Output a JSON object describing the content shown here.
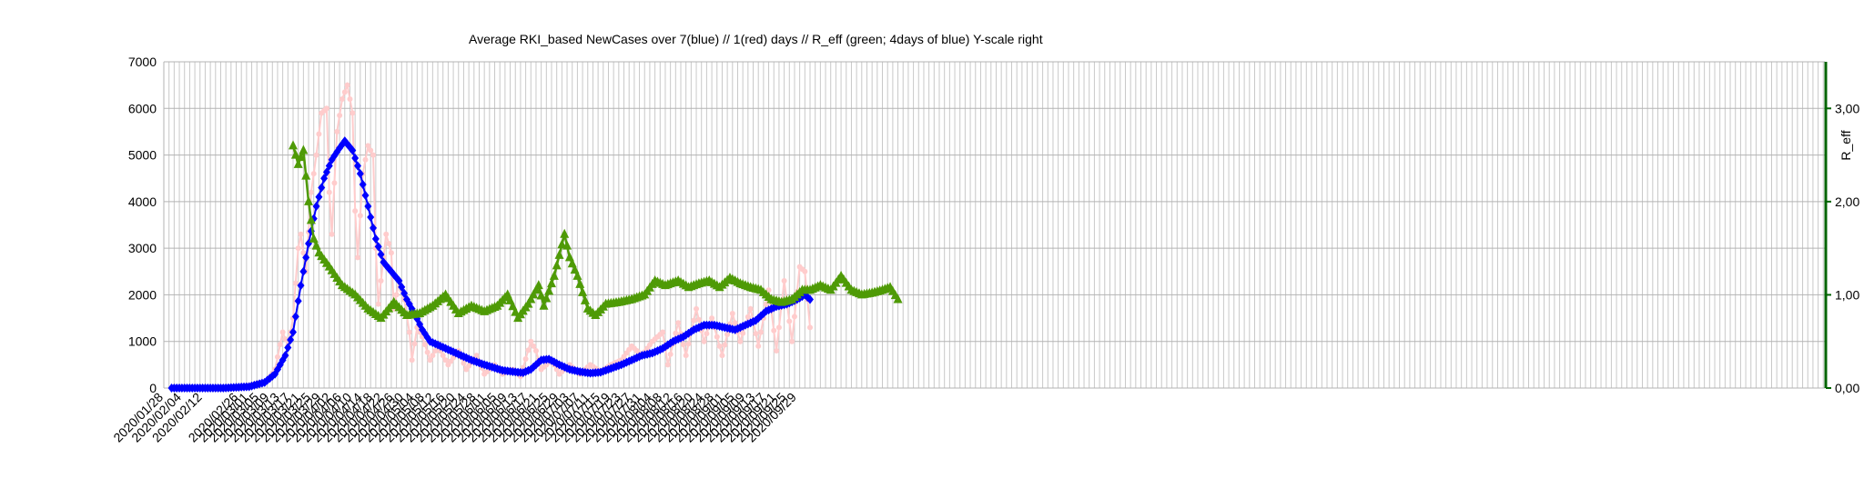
{
  "chart_data": {
    "type": "line",
    "title": "Average RKI_based NewCases over 7(blue) // 1(red) days //  R_eff (green; 4days of blue) Y-scale right",
    "xlabel": "",
    "ylabel": "",
    "y2label": "R_eff",
    "ylim": [
      0,
      7000
    ],
    "y2lim": [
      0,
      3.5
    ],
    "y_ticks": [
      "0",
      "1000",
      "2000",
      "3000",
      "4000",
      "5000",
      "6000",
      "7000"
    ],
    "y2_ticks": [
      "0,00",
      "1,00",
      "2,00",
      "3,00"
    ],
    "x_start": "2020/01/28",
    "x_tick_labels": [
      "2020/01/28",
      "2020/02/04",
      "2020/02/12",
      "2020/02/26",
      "2020/03/01",
      "2020/03/05",
      "2020/03/09",
      "2020/03/13",
      "2020/03/17",
      "2020/03/21",
      "2020/03/25",
      "2020/03/29",
      "2020/04/02",
      "2020/04/06",
      "2020/04/10",
      "2020/04/14",
      "2020/04/18",
      "2020/04/22",
      "2020/04/26",
      "2020/04/30",
      "2020/05/04",
      "2020/05/08",
      "2020/05/12",
      "2020/05/16",
      "2020/05/20",
      "2020/05/24",
      "2020/05/28",
      "2020/06/01",
      "2020/06/05",
      "2020/06/09",
      "2020/06/13",
      "2020/06/17",
      "2020/06/21",
      "2020/06/25",
      "2020/06/29",
      "2020/07/03",
      "2020/07/07",
      "2020/07/11",
      "2020/07/15",
      "2020/07/19",
      "2020/07/23",
      "2020/07/27",
      "2020/07/31",
      "2020/08/04",
      "2020/08/08",
      "2020/08/12",
      "2020/08/16",
      "2020/08/20",
      "2020/08/24",
      "2020/08/28",
      "2020/09/01",
      "2020/09/05",
      "2020/09/09",
      "2020/09/13",
      "2020/09/17",
      "2020/09/21",
      "2020/09/25",
      "2020/09/29"
    ],
    "grid": true,
    "series": [
      {
        "key": "avg7",
        "color": "#0000ff",
        "marker": "diamond",
        "axis": "left",
        "points": [
          [
            "2020/01/31",
            0
          ],
          [
            "2020/02/20",
            0
          ],
          [
            "2020/03/01",
            30
          ],
          [
            "2020/03/07",
            120
          ],
          [
            "2020/03/11",
            300
          ],
          [
            "2020/03/15",
            700
          ],
          [
            "2020/03/18",
            1200
          ],
          [
            "2020/03/21",
            2200
          ],
          [
            "2020/03/24",
            3100
          ],
          [
            "2020/03/27",
            3900
          ],
          [
            "2020/03/30",
            4500
          ],
          [
            "2020/04/02",
            4900
          ],
          [
            "2020/04/05",
            5150
          ],
          [
            "2020/04/07",
            5300
          ],
          [
            "2020/04/10",
            5100
          ],
          [
            "2020/04/13",
            4600
          ],
          [
            "2020/04/16",
            3900
          ],
          [
            "2020/04/19",
            3200
          ],
          [
            "2020/04/22",
            2700
          ],
          [
            "2020/04/25",
            2500
          ],
          [
            "2020/04/28",
            2300
          ],
          [
            "2020/05/01",
            1900
          ],
          [
            "2020/05/04",
            1600
          ],
          [
            "2020/05/07",
            1250
          ],
          [
            "2020/05/10",
            1000
          ],
          [
            "2020/05/14",
            900
          ],
          [
            "2020/05/18",
            800
          ],
          [
            "2020/05/22",
            700
          ],
          [
            "2020/05/26",
            600
          ],
          [
            "2020/05/30",
            520
          ],
          [
            "2020/06/03",
            450
          ],
          [
            "2020/06/07",
            380
          ],
          [
            "2020/06/11",
            350
          ],
          [
            "2020/06/15",
            330
          ],
          [
            "2020/06/18",
            400
          ],
          [
            "2020/06/22",
            600
          ],
          [
            "2020/06/25",
            620
          ],
          [
            "2020/06/29",
            500
          ],
          [
            "2020/07/03",
            400
          ],
          [
            "2020/07/07",
            350
          ],
          [
            "2020/07/11",
            320
          ],
          [
            "2020/07/15",
            340
          ],
          [
            "2020/07/19",
            420
          ],
          [
            "2020/07/23",
            500
          ],
          [
            "2020/07/27",
            600
          ],
          [
            "2020/07/31",
            700
          ],
          [
            "2020/08/04",
            750
          ],
          [
            "2020/08/08",
            850
          ],
          [
            "2020/08/12",
            1000
          ],
          [
            "2020/08/16",
            1100
          ],
          [
            "2020/08/20",
            1250
          ],
          [
            "2020/08/24",
            1350
          ],
          [
            "2020/08/28",
            1350
          ],
          [
            "2020/09/01",
            1300
          ],
          [
            "2020/09/05",
            1250
          ],
          [
            "2020/09/09",
            1350
          ],
          [
            "2020/09/13",
            1450
          ],
          [
            "2020/09/17",
            1650
          ],
          [
            "2020/09/21",
            1750
          ],
          [
            "2020/09/25",
            1800
          ],
          [
            "2020/09/29",
            1900
          ],
          [
            "2020/10/02",
            2000
          ],
          [
            "2020/10/04",
            1900
          ]
        ]
      },
      {
        "key": "daily",
        "color": "#ffcccc",
        "marker": "circle",
        "axis": "left",
        "points": [
          [
            "2020/01/31",
            0
          ],
          [
            "2020/02/26",
            0
          ],
          [
            "2020/03/04",
            100
          ],
          [
            "2020/03/08",
            150
          ],
          [
            "2020/03/11",
            400
          ],
          [
            "2020/03/14",
            1200
          ],
          [
            "2020/03/16",
            900
          ],
          [
            "2020/03/18",
            1500
          ],
          [
            "2020/03/20",
            3000
          ],
          [
            "2020/03/21",
            3300
          ],
          [
            "2020/03/23",
            2500
          ],
          [
            "2020/03/25",
            4200
          ],
          [
            "2020/03/27",
            5000
          ],
          [
            "2020/03/29",
            5900
          ],
          [
            "2020/03/31",
            6000
          ],
          [
            "2020/04/01",
            4200
          ],
          [
            "2020/04/02",
            3300
          ],
          [
            "2020/04/04",
            5500
          ],
          [
            "2020/04/06",
            6200
          ],
          [
            "2020/04/08",
            6500
          ],
          [
            "2020/04/10",
            5900
          ],
          [
            "2020/04/11",
            3800
          ],
          [
            "2020/04/12",
            2800
          ],
          [
            "2020/04/14",
            4600
          ],
          [
            "2020/04/16",
            5200
          ],
          [
            "2020/04/18",
            5000
          ],
          [
            "2020/04/19",
            3000
          ],
          [
            "2020/04/20",
            1800
          ],
          [
            "2020/04/23",
            3300
          ],
          [
            "2020/04/25",
            2900
          ],
          [
            "2020/04/26",
            1700
          ],
          [
            "2020/04/28",
            2300
          ],
          [
            "2020/04/30",
            1900
          ],
          [
            "2020/05/02",
            1200
          ],
          [
            "2020/05/03",
            600
          ],
          [
            "2020/05/05",
            1300
          ],
          [
            "2020/05/07",
            1100
          ],
          [
            "2020/05/10",
            600
          ],
          [
            "2020/05/13",
            900
          ],
          [
            "2020/05/17",
            500
          ],
          [
            "2020/05/21",
            800
          ],
          [
            "2020/05/24",
            400
          ],
          [
            "2020/05/28",
            700
          ],
          [
            "2020/05/31",
            300
          ],
          [
            "2020/06/04",
            500
          ],
          [
            "2020/06/07",
            300
          ],
          [
            "2020/06/11",
            400
          ],
          [
            "2020/06/14",
            250
          ],
          [
            "2020/06/18",
            1000
          ],
          [
            "2020/06/20",
            800
          ],
          [
            "2020/06/22",
            400
          ],
          [
            "2020/06/26",
            600
          ],
          [
            "2020/06/29",
            300
          ],
          [
            "2020/07/03",
            500
          ],
          [
            "2020/07/07",
            300
          ],
          [
            "2020/07/11",
            500
          ],
          [
            "2020/07/15",
            350
          ],
          [
            "2020/07/19",
            500
          ],
          [
            "2020/07/23",
            600
          ],
          [
            "2020/07/27",
            900
          ],
          [
            "2020/07/31",
            700
          ],
          [
            "2020/08/04",
            1000
          ],
          [
            "2020/08/08",
            1200
          ],
          [
            "2020/08/10",
            500
          ],
          [
            "2020/08/14",
            1400
          ],
          [
            "2020/08/17",
            700
          ],
          [
            "2020/08/21",
            1700
          ],
          [
            "2020/08/24",
            1000
          ],
          [
            "2020/08/27",
            1500
          ],
          [
            "2020/08/31",
            700
          ],
          [
            "2020/09/04",
            1600
          ],
          [
            "2020/09/07",
            1000
          ],
          [
            "2020/09/11",
            1700
          ],
          [
            "2020/09/14",
            900
          ],
          [
            "2020/09/18",
            2100
          ],
          [
            "2020/09/21",
            800
          ],
          [
            "2020/09/24",
            2300
          ],
          [
            "2020/09/27",
            1000
          ],
          [
            "2020/09/30",
            2600
          ],
          [
            "2020/10/02",
            2500
          ],
          [
            "2020/10/04",
            1300
          ]
        ]
      },
      {
        "key": "reff",
        "color": "#4e9a06",
        "marker": "triangle",
        "axis": "right",
        "points": [
          [
            "2020/03/18",
            2.6
          ],
          [
            "2020/03/20",
            2.4
          ],
          [
            "2020/03/22",
            2.55
          ],
          [
            "2020/03/24",
            2.0
          ],
          [
            "2020/03/26",
            1.6
          ],
          [
            "2020/03/28",
            1.45
          ],
          [
            "2020/04/01",
            1.3
          ],
          [
            "2020/04/06",
            1.1
          ],
          [
            "2020/04/11",
            1.0
          ],
          [
            "2020/04/16",
            0.85
          ],
          [
            "2020/04/21",
            0.75
          ],
          [
            "2020/04/26",
            0.92
          ],
          [
            "2020/05/01",
            0.78
          ],
          [
            "2020/05/06",
            0.8
          ],
          [
            "2020/05/11",
            0.88
          ],
          [
            "2020/05/16",
            1.0
          ],
          [
            "2020/05/21",
            0.8
          ],
          [
            "2020/05/26",
            0.88
          ],
          [
            "2020/05/31",
            0.82
          ],
          [
            "2020/06/05",
            0.88
          ],
          [
            "2020/06/09",
            1.0
          ],
          [
            "2020/06/13",
            0.75
          ],
          [
            "2020/06/17",
            0.9
          ],
          [
            "2020/06/21",
            1.1
          ],
          [
            "2020/06/23",
            0.88
          ],
          [
            "2020/06/27",
            1.2
          ],
          [
            "2020/07/01",
            1.65
          ],
          [
            "2020/07/03",
            1.4
          ],
          [
            "2020/07/06",
            1.2
          ],
          [
            "2020/07/10",
            0.85
          ],
          [
            "2020/07/13",
            0.78
          ],
          [
            "2020/07/17",
            0.9
          ],
          [
            "2020/07/22",
            0.92
          ],
          [
            "2020/07/27",
            0.95
          ],
          [
            "2020/08/01",
            1.0
          ],
          [
            "2020/08/05",
            1.15
          ],
          [
            "2020/08/09",
            1.1
          ],
          [
            "2020/08/14",
            1.15
          ],
          [
            "2020/08/18",
            1.08
          ],
          [
            "2020/08/22",
            1.12
          ],
          [
            "2020/08/26",
            1.15
          ],
          [
            "2020/08/30",
            1.08
          ],
          [
            "2020/09/03",
            1.18
          ],
          [
            "2020/09/07",
            1.12
          ],
          [
            "2020/09/11",
            1.08
          ],
          [
            "2020/09/15",
            1.05
          ],
          [
            "2020/09/19",
            0.95
          ],
          [
            "2020/09/23",
            0.92
          ],
          [
            "2020/09/27",
            0.95
          ],
          [
            "2020/10/01",
            1.05
          ],
          [
            "2020/10/04",
            1.05
          ],
          [
            "2020/10/08",
            1.1
          ],
          [
            "2020/10/12",
            1.05
          ],
          [
            "2020/10/16",
            1.2
          ],
          [
            "2020/10/20",
            1.05
          ],
          [
            "2020/10/24",
            1.0
          ],
          [
            "2020/10/28",
            1.02
          ],
          [
            "2020/11/01",
            1.05
          ],
          [
            "2020/11/04",
            1.08
          ],
          [
            "2020/11/07",
            0.95
          ]
        ]
      }
    ]
  }
}
